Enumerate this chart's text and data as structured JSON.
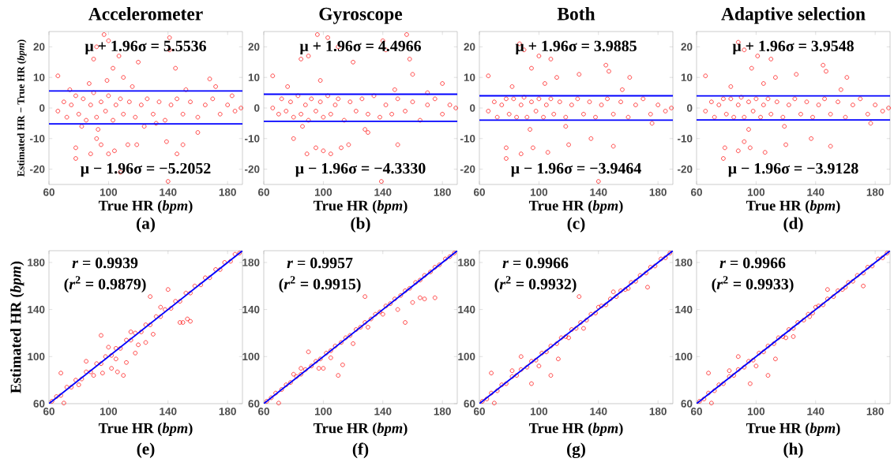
{
  "chart_data": [
    {
      "type": "scatter",
      "title": "Accelerometer",
      "xlabel": "True HR (*bpm*)",
      "ylabel": "Estimated HR − True HR (*bpm*)",
      "marker": "circle",
      "xlim": [
        60,
        190
      ],
      "ylim": [
        -25,
        25
      ],
      "xticks": [
        60,
        100,
        140,
        180
      ],
      "yticks": [
        -20,
        -10,
        0,
        10,
        20
      ],
      "series": [
        {
          "color": "#ff0000",
          "x": [
            66,
            70,
            72,
            75,
            78,
            80,
            83,
            85,
            88,
            90,
            92,
            95,
            98,
            100,
            103,
            105,
            108,
            110,
            114,
            118,
            122,
            126,
            130,
            134,
            138,
            142,
            146,
            150,
            155,
            160,
            165,
            170,
            175,
            180,
            185,
            189,
            66,
            90,
            92,
            97,
            100,
            103,
            107,
            110,
            120,
            141,
            141,
            145,
            168,
            78,
            78,
            88,
            95,
            100,
            104,
            113,
            119,
            139,
            146,
            150,
            108,
            140,
            92,
            160,
            74,
            82,
            87,
            93,
            99,
            116,
            124,
            132,
            152,
            172,
            183
          ],
          "values": [
            -1,
            2,
            -3,
            1,
            4,
            -2,
            3,
            -4,
            1,
            5,
            -3,
            2,
            -1,
            4,
            -4,
            1,
            3,
            -2,
            2,
            -3,
            1,
            3,
            -2,
            2,
            -4,
            1,
            3,
            -2,
            2,
            -3,
            1,
            3,
            -2,
            1,
            -1,
            0,
            10.5,
            16,
            20,
            24,
            22,
            13,
            17,
            10,
            15,
            23,
            19,
            13,
            9.5,
            -16.5,
            -13,
            -15,
            -12,
            -15,
            -14,
            -12,
            -12,
            -11,
            -15,
            -12,
            -21,
            -24,
            -10,
            -8,
            6,
            -6,
            8,
            -7,
            9,
            7,
            -6,
            -5,
            6,
            7,
            4
          ]
        }
      ],
      "ref_lines": [
        {
          "axis": "y",
          "value": 5.5536,
          "label": "μ + 1.96σ = 5.5536",
          "color": "#0000ff"
        },
        {
          "axis": "y",
          "value": -5.2052,
          "label": "μ − 1.96σ = −5.2052",
          "color": "#0000ff"
        }
      ],
      "annotations": [
        "(a)"
      ]
    },
    {
      "type": "scatter",
      "title": "Gyroscope",
      "xlabel": "True HR (*bpm*)",
      "marker": "circle",
      "xlim": [
        60,
        190
      ],
      "ylim": [
        -25,
        25
      ],
      "xticks": [
        60,
        100,
        140,
        180
      ],
      "yticks": [
        -20,
        -10,
        0,
        10,
        20
      ],
      "series": [
        {
          "color": "#ff0000",
          "x": [
            66,
            70,
            72,
            75,
            78,
            80,
            83,
            85,
            88,
            90,
            92,
            95,
            98,
            100,
            103,
            105,
            108,
            110,
            114,
            118,
            122,
            126,
            130,
            134,
            138,
            142,
            146,
            150,
            155,
            160,
            165,
            170,
            175,
            180,
            185,
            189,
            66,
            85,
            90,
            96,
            103,
            110,
            120,
            140,
            142,
            156,
            158,
            160,
            180,
            89,
            95,
            100,
            105,
            112,
            117,
            139,
            150,
            80,
            130,
            76,
            86,
            98,
            128,
            148,
            170
          ],
          "values": [
            0,
            -2,
            3,
            -1,
            2,
            -3,
            4,
            -2,
            1,
            -4,
            3,
            -1,
            2,
            -3,
            4,
            -2,
            1,
            3,
            -4,
            2,
            -1,
            3,
            -2,
            4,
            -3,
            1,
            -2,
            3,
            -1,
            2,
            -4,
            1,
            3,
            -2,
            1,
            0,
            10.5,
            16,
            17,
            24,
            23,
            20,
            15,
            22,
            19,
            24,
            16,
            11,
            8,
            -15,
            -13,
            -14,
            -15,
            -13,
            -12,
            -24,
            -12,
            -10,
            -8,
            7,
            -6,
            9,
            -7,
            6,
            5
          ]
        }
      ],
      "ref_lines": [
        {
          "axis": "y",
          "value": 4.4966,
          "label": "μ + 1.96σ = 4.4966",
          "color": "#0000ff"
        },
        {
          "axis": "y",
          "value": -4.333,
          "label": "μ − 1.96σ = −4.3330",
          "color": "#0000ff"
        }
      ],
      "annotations": [
        "(b)"
      ]
    },
    {
      "type": "scatter",
      "title": "Both",
      "xlabel": "True HR (*bpm*)",
      "marker": "circle",
      "xlim": [
        60,
        190
      ],
      "ylim": [
        -25,
        25
      ],
      "xticks": [
        60,
        100,
        140,
        180
      ],
      "yticks": [
        -20,
        -10,
        0,
        10,
        20
      ],
      "series": [
        {
          "color": "#ff0000",
          "x": [
            66,
            70,
            72,
            75,
            78,
            80,
            83,
            85,
            88,
            90,
            92,
            95,
            98,
            100,
            103,
            105,
            108,
            110,
            114,
            118,
            122,
            126,
            130,
            134,
            138,
            142,
            146,
            150,
            155,
            160,
            165,
            170,
            175,
            180,
            185,
            189,
            66,
            87,
            90,
            95,
            100,
            108,
            112,
            127,
            145,
            147,
            161,
            78,
            78,
            88,
            96,
            106,
            120,
            135,
            150,
            140,
            82,
            94,
            104,
            118,
            156,
            176
          ],
          "values": [
            -1,
            2,
            -3,
            1,
            3,
            -2,
            3,
            -3,
            1,
            3.5,
            -3,
            2,
            -1,
            3,
            -3,
            1,
            3,
            -2,
            2,
            -3,
            1,
            3,
            -2,
            2,
            -3,
            1,
            3,
            -2,
            2,
            -3,
            1,
            3,
            -2,
            1,
            -1,
            0,
            10.5,
            21,
            19,
            13,
            17,
            16,
            10,
            11,
            14,
            12,
            10,
            -16.5,
            -13,
            -15,
            -13,
            -14.5,
            -12,
            -10,
            -12.5,
            -24,
            7,
            -7,
            8,
            -6,
            6,
            -5
          ]
        }
      ],
      "ref_lines": [
        {
          "axis": "y",
          "value": 3.9885,
          "label": "μ + 1.96σ = 3.9885",
          "color": "#0000ff"
        },
        {
          "axis": "y",
          "value": -3.9464,
          "label": "μ − 1.96σ = −3.9464",
          "color": "#0000ff"
        }
      ],
      "annotations": [
        "(c)"
      ]
    },
    {
      "type": "scatter",
      "title": "Adaptive selection",
      "xlabel": "True HR (*bpm*)",
      "marker": "circle",
      "xlim": [
        60,
        190
      ],
      "ylim": [
        -25,
        25
      ],
      "xticks": [
        60,
        100,
        140,
        180
      ],
      "yticks": [
        -20,
        -10,
        0,
        10,
        20
      ],
      "series": [
        {
          "color": "#ff0000",
          "x": [
            66,
            70,
            72,
            75,
            78,
            80,
            83,
            85,
            88,
            90,
            92,
            95,
            98,
            100,
            103,
            105,
            108,
            110,
            114,
            118,
            122,
            126,
            130,
            134,
            138,
            142,
            146,
            150,
            155,
            160,
            165,
            170,
            175,
            180,
            185,
            189,
            66,
            88,
            92,
            97,
            101,
            110,
            113,
            127,
            145,
            147,
            161,
            78,
            79,
            88,
            96,
            106,
            120,
            137,
            150,
            92,
            83,
            95,
            105,
            119,
            157,
            177
          ],
          "values": [
            -1,
            2,
            -3,
            1,
            3,
            -2,
            3,
            -3,
            1,
            3.5,
            -3,
            2,
            -1,
            3,
            -3,
            1,
            3,
            -2,
            2,
            -3,
            1,
            3,
            -2,
            2,
            -3,
            1,
            3,
            -2,
            2,
            -3,
            1,
            3,
            -2,
            1,
            -1,
            0,
            10.5,
            21.5,
            19,
            13,
            17,
            16,
            10,
            11,
            14,
            12,
            10,
            -16.5,
            -13,
            -14,
            -13,
            -14.5,
            -12,
            -10,
            -12.5,
            -11,
            7,
            -7,
            8,
            -6,
            6,
            -5
          ]
        }
      ],
      "ref_lines": [
        {
          "axis": "y",
          "value": 3.9548,
          "label": "μ + 1.96σ = 3.9548",
          "color": "#0000ff"
        },
        {
          "axis": "y",
          "value": -3.9128,
          "label": "μ − 1.96σ = −3.9128",
          "color": "#0000ff"
        }
      ],
      "annotations": [
        "(d)"
      ]
    },
    {
      "type": "scatter",
      "xlabel": "True HR (*bpm*)",
      "ylabel": "Estimated HR (*bpm*)",
      "marker": "circle",
      "xlim": [
        60,
        190
      ],
      "ylim": [
        60,
        190
      ],
      "xticks": [
        60,
        100,
        140,
        180
      ],
      "yticks": [
        60,
        100,
        140,
        180
      ],
      "series": [
        {
          "color": "#ff0000",
          "x": [
            62,
            65,
            68,
            72,
            75,
            78,
            82,
            85,
            88,
            92,
            95,
            98,
            102,
            105,
            108,
            112,
            115,
            118,
            122,
            125,
            128,
            132,
            135,
            138,
            142,
            145,
            148,
            152,
            155,
            158,
            162,
            165,
            168,
            172,
            175,
            178,
            182,
            185,
            188,
            70,
            68,
            95,
            106,
            110,
            112,
            120,
            128,
            140,
            148,
            150,
            153,
            155,
            118,
            125,
            130,
            85,
            90,
            100,
            105,
            115,
            135,
            80,
            96,
            102
          ],
          "values": [
            62,
            66,
            67,
            74,
            74,
            80,
            81,
            87,
            87,
            94,
            94,
            100,
            101,
            107,
            107,
            114,
            114,
            120,
            121,
            127,
            127,
            134,
            134,
            140,
            141,
            147,
            147,
            154,
            154,
            160,
            161,
            167,
            167,
            174,
            174,
            180,
            181,
            187,
            188,
            60.5,
            86,
            118,
            87,
            84,
            95,
            110,
            151,
            157,
            129,
            129,
            132,
            130,
            103,
            112,
            119,
            96,
            84,
            108,
            98,
            121,
            142,
            76,
            86,
            90
          ]
        },
        {
          "type": "line",
          "marker": "none",
          "color": "#0000ff",
          "x": [
            60,
            190
          ],
          "values": [
            60,
            190
          ]
        }
      ],
      "annotations": [
        "*r* = 0.9939",
        "(*r*$^{2}$ = 0.9879)",
        "(e)"
      ]
    },
    {
      "type": "scatter",
      "xlabel": "True HR (*bpm*)",
      "marker": "circle",
      "xlim": [
        60,
        190
      ],
      "ylim": [
        60,
        190
      ],
      "xticks": [
        60,
        100,
        140,
        180
      ],
      "yticks": [
        60,
        100,
        140,
        180
      ],
      "series": [
        {
          "color": "#ff0000",
          "x": [
            62,
            65,
            68,
            72,
            75,
            78,
            82,
            85,
            88,
            92,
            95,
            98,
            102,
            105,
            108,
            112,
            115,
            118,
            122,
            125,
            128,
            132,
            135,
            138,
            142,
            145,
            148,
            152,
            155,
            158,
            162,
            165,
            168,
            172,
            175,
            178,
            182,
            185,
            188,
            70,
            128,
            150,
            155,
            165,
            168,
            175,
            160,
            110,
            113,
            90,
            100,
            120,
            85,
            140,
            80,
            97,
            105,
            130
          ],
          "values": [
            62,
            65,
            69,
            72,
            76,
            78,
            83,
            85,
            89,
            92,
            96,
            98,
            103,
            105,
            109,
            112,
            116,
            118,
            123,
            125,
            129,
            132,
            136,
            138,
            143,
            145,
            149,
            152,
            156,
            158,
            163,
            165,
            169,
            172,
            176,
            178,
            183,
            185,
            188,
            60.5,
            151,
            140,
            129,
            150,
            149,
            150,
            146,
            84,
            93,
            104,
            90,
            111,
            90,
            136,
            85,
            90,
            99,
            125
          ]
        },
        {
          "type": "line",
          "marker": "none",
          "color": "#0000ff",
          "x": [
            60,
            190
          ],
          "values": [
            60,
            190
          ]
        }
      ],
      "annotations": [
        "*r* = 0.9957",
        "(*r*$^{2}$ = 0.9915)",
        "(f)"
      ]
    },
    {
      "type": "scatter",
      "xlabel": "True HR (*bpm*)",
      "marker": "circle",
      "xlim": [
        60,
        190
      ],
      "ylim": [
        60,
        190
      ],
      "xticks": [
        60,
        100,
        140,
        180
      ],
      "yticks": [
        60,
        100,
        140,
        180
      ],
      "series": [
        {
          "color": "#ff0000",
          "x": [
            62,
            65,
            68,
            72,
            75,
            78,
            82,
            85,
            88,
            92,
            95,
            98,
            102,
            105,
            108,
            112,
            115,
            118,
            122,
            125,
            128,
            132,
            135,
            138,
            142,
            145,
            148,
            152,
            155,
            158,
            162,
            165,
            168,
            172,
            175,
            178,
            182,
            185,
            188,
            70,
            127,
            95,
            108,
            68,
            150,
            160,
            173,
            113,
            130,
            88,
            100,
            140,
            82,
            120
          ],
          "values": [
            62,
            64,
            69,
            71,
            76,
            77,
            83,
            84,
            89,
            91,
            96,
            97,
            103,
            104,
            109,
            111,
            116,
            117,
            123,
            124,
            129,
            131,
            136,
            137,
            143,
            144,
            149,
            151,
            156,
            157,
            163,
            164,
            169,
            171,
            176,
            177,
            183,
            184,
            188,
            60.5,
            151,
            77,
            84,
            86,
            155,
            158,
            159,
            98,
            124,
            100,
            92,
            142,
            88,
            116
          ]
        },
        {
          "type": "line",
          "marker": "none",
          "color": "#0000ff",
          "x": [
            60,
            190
          ],
          "values": [
            60,
            190
          ]
        }
      ],
      "annotations": [
        "*r* = 0.9966",
        "(*r*$^{2}$ = 0.9932)",
        "(g)"
      ]
    },
    {
      "type": "scatter",
      "xlabel": "True HR (*bpm*)",
      "marker": "circle",
      "xlim": [
        60,
        190
      ],
      "ylim": [
        60,
        190
      ],
      "xticks": [
        60,
        100,
        140,
        180
      ],
      "yticks": [
        60,
        100,
        140,
        180
      ],
      "series": [
        {
          "color": "#ff0000",
          "x": [
            62,
            65,
            68,
            72,
            75,
            78,
            82,
            85,
            88,
            92,
            95,
            98,
            102,
            105,
            108,
            112,
            115,
            118,
            122,
            125,
            128,
            132,
            135,
            138,
            142,
            145,
            148,
            152,
            155,
            158,
            162,
            165,
            168,
            172,
            175,
            178,
            182,
            185,
            188,
            70,
            96,
            108,
            68,
            148,
            160,
            172,
            113,
            125,
            88,
            100,
            140,
            82,
            120,
            136
          ],
          "values": [
            62,
            64,
            69,
            71,
            76,
            77,
            83,
            84,
            89,
            91,
            96,
            97,
            103,
            104,
            109,
            111,
            116,
            117,
            123,
            124,
            129,
            131,
            136,
            137,
            143,
            144,
            149,
            151,
            156,
            157,
            163,
            164,
            169,
            171,
            176,
            177,
            183,
            184,
            188,
            60.5,
            77,
            84,
            86,
            157,
            159,
            160,
            98,
            117,
            100,
            92,
            142,
            88,
            116,
            134
          ]
        },
        {
          "type": "line",
          "marker": "none",
          "color": "#0000ff",
          "x": [
            60,
            190
          ],
          "values": [
            60,
            190
          ]
        }
      ],
      "annotations": [
        "*r* = 0.9966",
        "(*r*$^{2}$ = 0.9933)",
        "(h)"
      ]
    }
  ]
}
